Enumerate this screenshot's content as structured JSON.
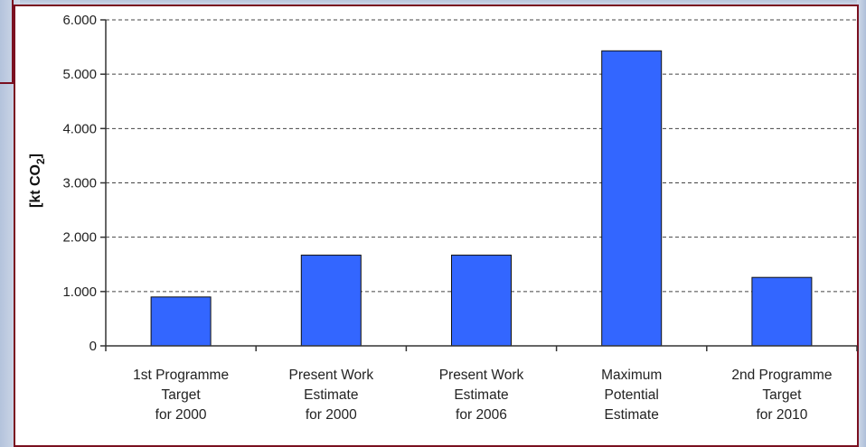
{
  "chart_data": {
    "type": "bar",
    "categories": [
      [
        "1st Programme",
        "Target",
        "for 2000"
      ],
      [
        "Present Work",
        "Estimate",
        "for 2000"
      ],
      [
        "Present Work",
        "Estimate",
        "for 2006"
      ],
      [
        "Maximum",
        "Potential",
        "Estimate"
      ],
      [
        "2nd Programme",
        "Target",
        "for 2010"
      ]
    ],
    "values": [
      900,
      1670,
      1670,
      5430,
      1260
    ],
    "ylabel": "[kt CO2]",
    "ylim": [
      0,
      6000
    ],
    "yticks": [
      0,
      1000,
      2000,
      3000,
      4000,
      5000,
      6000
    ],
    "ytick_labels": [
      "0",
      "1.000",
      "2.000",
      "3.000",
      "4.000",
      "5.000",
      "6.000"
    ],
    "grid": "dashed horizontal",
    "bar_color": "#3366ff",
    "bar_edge_color": "#111111"
  },
  "y_title_parts": {
    "main": "[kt CO",
    "sub": "2",
    "close": "]"
  }
}
